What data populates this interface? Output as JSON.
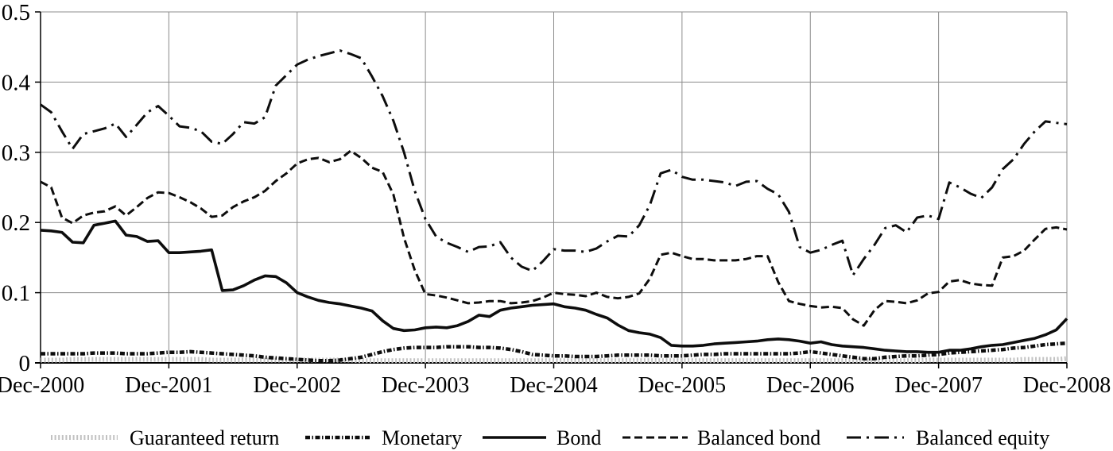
{
  "chart_data": {
    "type": "line",
    "title": "",
    "xlabel": "",
    "ylabel": "",
    "grid": true,
    "legend_position": "bottom",
    "x_unit": "month",
    "n_points": 97,
    "x_range": [
      "Dec-2000",
      "Dec-2008"
    ],
    "x_tick_labels": [
      "Dec-2000",
      "Dec-2001",
      "Dec-2002",
      "Dec-2003",
      "Dec-2004",
      "Dec-2005",
      "Dec-2006",
      "Dec-2007",
      "Dec-2008"
    ],
    "y_tick_labels": [
      "0",
      "0.1",
      "0.2",
      "0.3",
      "0.4",
      "0.5"
    ],
    "y_ticks": [
      0,
      0.1,
      0.2,
      0.3,
      0.4,
      0.5
    ],
    "ylim": [
      0,
      0.5
    ],
    "series": [
      {
        "name": "Guaranteed return",
        "style": "dotted-light",
        "color": "#c2c2c2",
        "values": [
          0.004,
          0.004,
          0.004,
          0.005,
          0.005,
          0.005,
          0.005,
          0.005,
          0.005,
          0.005,
          0.005,
          0.005,
          0.005,
          0.005,
          0.005,
          0.005,
          0.004,
          0.004,
          0.004,
          0.004,
          0.004,
          0.004,
          0.004,
          0.004,
          0.004,
          0.004,
          0.004,
          0.004,
          0.004,
          0.004,
          0.003,
          0.003,
          0.003,
          0.003,
          0.003,
          0.003,
          0.003,
          0.003,
          0.003,
          0.003,
          0.003,
          0.003,
          0.003,
          0.003,
          0.003,
          0.003,
          0.003,
          0.003,
          0.003,
          0.003,
          0.003,
          0.003,
          0.003,
          0.003,
          0.003,
          0.003,
          0.003,
          0.003,
          0.003,
          0.003,
          0.003,
          0.003,
          0.003,
          0.003,
          0.003,
          0.003,
          0.003,
          0.003,
          0.003,
          0.003,
          0.003,
          0.003,
          0.003,
          0.003,
          0.003,
          0.003,
          0.003,
          0.003,
          0.003,
          0.003,
          0.003,
          0.003,
          0.003,
          0.004,
          0.004,
          0.004,
          0.004,
          0.004,
          0.004,
          0.004,
          0.004,
          0.004,
          0.005,
          0.005,
          0.005,
          0.005,
          0.006
        ]
      },
      {
        "name": "Monetary",
        "style": "beaded",
        "color": "#0d0d0d",
        "values": [
          0.013,
          0.013,
          0.013,
          0.013,
          0.013,
          0.014,
          0.014,
          0.014,
          0.013,
          0.013,
          0.013,
          0.014,
          0.015,
          0.015,
          0.016,
          0.015,
          0.014,
          0.013,
          0.012,
          0.011,
          0.01,
          0.008,
          0.007,
          0.006,
          0.005,
          0.004,
          0.003,
          0.003,
          0.004,
          0.006,
          0.008,
          0.012,
          0.016,
          0.019,
          0.021,
          0.022,
          0.022,
          0.022,
          0.023,
          0.023,
          0.023,
          0.022,
          0.022,
          0.021,
          0.019,
          0.016,
          0.012,
          0.011,
          0.01,
          0.01,
          0.009,
          0.009,
          0.009,
          0.01,
          0.011,
          0.011,
          0.011,
          0.011,
          0.01,
          0.01,
          0.01,
          0.011,
          0.012,
          0.012,
          0.013,
          0.013,
          0.013,
          0.013,
          0.013,
          0.013,
          0.013,
          0.014,
          0.016,
          0.014,
          0.012,
          0.01,
          0.008,
          0.006,
          0.006,
          0.008,
          0.009,
          0.01,
          0.01,
          0.011,
          0.012,
          0.014,
          0.015,
          0.016,
          0.017,
          0.018,
          0.019,
          0.021,
          0.022,
          0.024,
          0.026,
          0.027,
          0.028
        ]
      },
      {
        "name": "Bond",
        "style": "solid",
        "color": "#0d0d0d",
        "values": [
          0.189,
          0.188,
          0.186,
          0.172,
          0.171,
          0.196,
          0.199,
          0.202,
          0.182,
          0.18,
          0.173,
          0.174,
          0.157,
          0.157,
          0.158,
          0.159,
          0.161,
          0.103,
          0.104,
          0.11,
          0.118,
          0.124,
          0.123,
          0.114,
          0.1,
          0.094,
          0.089,
          0.086,
          0.084,
          0.081,
          0.078,
          0.074,
          0.06,
          0.049,
          0.046,
          0.047,
          0.05,
          0.051,
          0.05,
          0.053,
          0.059,
          0.068,
          0.066,
          0.075,
          0.078,
          0.08,
          0.082,
          0.083,
          0.084,
          0.08,
          0.078,
          0.075,
          0.069,
          0.064,
          0.054,
          0.046,
          0.043,
          0.041,
          0.036,
          0.025,
          0.024,
          0.024,
          0.025,
          0.027,
          0.028,
          0.029,
          0.03,
          0.031,
          0.033,
          0.034,
          0.033,
          0.031,
          0.028,
          0.03,
          0.026,
          0.024,
          0.023,
          0.022,
          0.02,
          0.018,
          0.017,
          0.016,
          0.016,
          0.015,
          0.015,
          0.018,
          0.018,
          0.02,
          0.023,
          0.025,
          0.026,
          0.029,
          0.032,
          0.035,
          0.04,
          0.047,
          0.063
        ]
      },
      {
        "name": "Balanced bond",
        "style": "dashed",
        "color": "#0d0d0d",
        "values": [
          0.258,
          0.25,
          0.207,
          0.199,
          0.21,
          0.214,
          0.216,
          0.223,
          0.21,
          0.222,
          0.235,
          0.243,
          0.242,
          0.236,
          0.229,
          0.22,
          0.208,
          0.21,
          0.222,
          0.23,
          0.236,
          0.245,
          0.259,
          0.27,
          0.284,
          0.29,
          0.292,
          0.286,
          0.29,
          0.302,
          0.292,
          0.278,
          0.272,
          0.24,
          0.178,
          0.132,
          0.098,
          0.096,
          0.093,
          0.089,
          0.085,
          0.086,
          0.088,
          0.088,
          0.085,
          0.086,
          0.088,
          0.093,
          0.1,
          0.098,
          0.097,
          0.095,
          0.1,
          0.094,
          0.092,
          0.094,
          0.099,
          0.12,
          0.154,
          0.157,
          0.152,
          0.148,
          0.148,
          0.146,
          0.146,
          0.146,
          0.148,
          0.152,
          0.152,
          0.115,
          0.088,
          0.084,
          0.081,
          0.079,
          0.08,
          0.078,
          0.062,
          0.053,
          0.075,
          0.088,
          0.087,
          0.085,
          0.089,
          0.099,
          0.101,
          0.116,
          0.118,
          0.113,
          0.111,
          0.11,
          0.15,
          0.152,
          0.16,
          0.176,
          0.191,
          0.193,
          0.19
        ]
      },
      {
        "name": "Balanced equity",
        "style": "dash-dot",
        "color": "#0d0d0d",
        "values": [
          0.368,
          0.357,
          0.33,
          0.305,
          0.326,
          0.33,
          0.334,
          0.341,
          0.322,
          0.339,
          0.357,
          0.366,
          0.352,
          0.337,
          0.335,
          0.33,
          0.315,
          0.312,
          0.326,
          0.343,
          0.341,
          0.35,
          0.395,
          0.41,
          0.425,
          0.432,
          0.437,
          0.441,
          0.445,
          0.44,
          0.434,
          0.408,
          0.38,
          0.345,
          0.3,
          0.245,
          0.205,
          0.18,
          0.171,
          0.165,
          0.158,
          0.165,
          0.166,
          0.172,
          0.15,
          0.137,
          0.131,
          0.145,
          0.162,
          0.16,
          0.16,
          0.158,
          0.163,
          0.173,
          0.181,
          0.18,
          0.196,
          0.225,
          0.27,
          0.275,
          0.265,
          0.261,
          0.261,
          0.259,
          0.257,
          0.252,
          0.258,
          0.259,
          0.248,
          0.24,
          0.215,
          0.165,
          0.157,
          0.161,
          0.168,
          0.174,
          0.125,
          0.148,
          0.168,
          0.192,
          0.196,
          0.186,
          0.207,
          0.21,
          0.205,
          0.257,
          0.25,
          0.241,
          0.235,
          0.25,
          0.276,
          0.29,
          0.312,
          0.33,
          0.344,
          0.342,
          0.34
        ]
      }
    ]
  },
  "colors": {
    "background": "#ffffff",
    "gridline": "#8c8c8c",
    "axis": "#000000",
    "text": "#000000",
    "guaranteed_return_line": "#c2c2c2",
    "dark_line": "#0d0d0d"
  }
}
